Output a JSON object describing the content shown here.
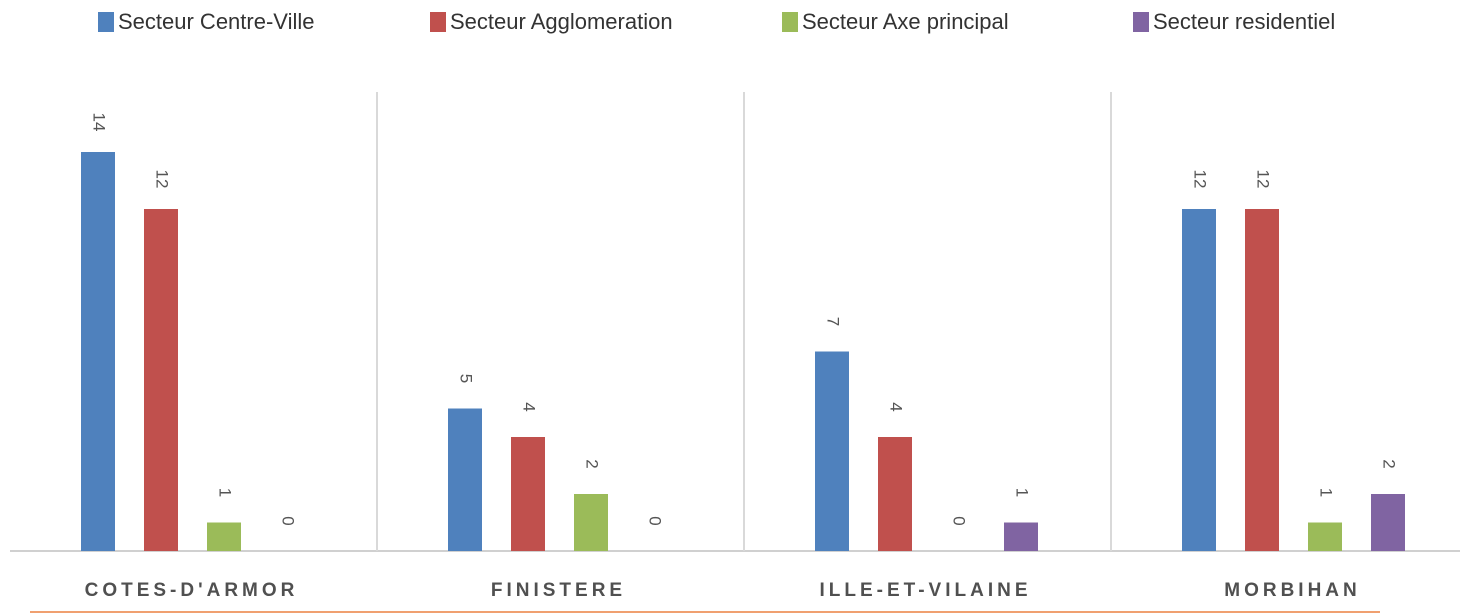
{
  "chart_data": {
    "type": "bar",
    "categories": [
      "COTES-D'ARMOR",
      "FINISTERE",
      "ILLE-ET-VILAINE",
      "MORBIHAN"
    ],
    "series": [
      {
        "name": "Secteur Centre-Ville",
        "color": "#4f81bd",
        "values": [
          14,
          5,
          7,
          12
        ]
      },
      {
        "name": "Secteur Agglomeration",
        "color": "#c0504d",
        "values": [
          12,
          4,
          4,
          12
        ]
      },
      {
        "name": "Secteur Axe principal",
        "color": "#9bbb59",
        "values": [
          1,
          2,
          0,
          1
        ]
      },
      {
        "name": "Secteur residentiel",
        "color": "#8064a2",
        "values": [
          0,
          0,
          1,
          2
        ]
      }
    ],
    "legend": "top"
  }
}
